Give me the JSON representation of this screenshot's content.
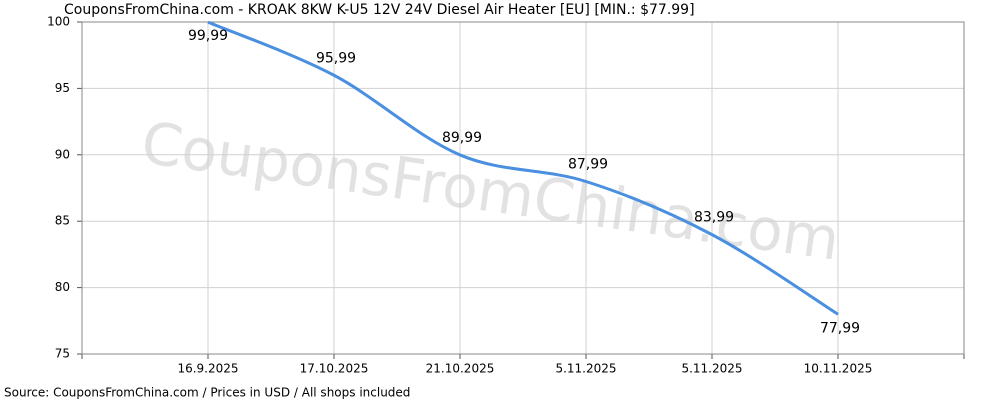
{
  "chart_data": {
    "type": "line",
    "title": "CouponsFromChina.com - KROAK 8KW K-U5 12V 24V Diesel Air Heater [EU] [MIN.: $77.99]",
    "watermark": "CouponsFromChina.com",
    "source": "Source: CouponsFromChina.com / Prices in USD / All shops included",
    "categories": [
      "16.9.2025",
      "17.10.2025",
      "21.10.2025",
      "5.11.2025",
      "5.11.2025",
      "10.11.2025"
    ],
    "series": [
      {
        "name": "Price",
        "color": "#4a8fe0",
        "values": [
          99.99,
          95.99,
          89.99,
          87.99,
          83.99,
          77.99
        ],
        "value_labels": [
          "99,99",
          "95,99",
          "89,99",
          "87,99",
          "83,99",
          "77,99"
        ]
      }
    ],
    "ylim": [
      75,
      100
    ],
    "yticks": [
      75,
      80,
      85,
      90,
      95,
      100
    ],
    "grid": true
  }
}
